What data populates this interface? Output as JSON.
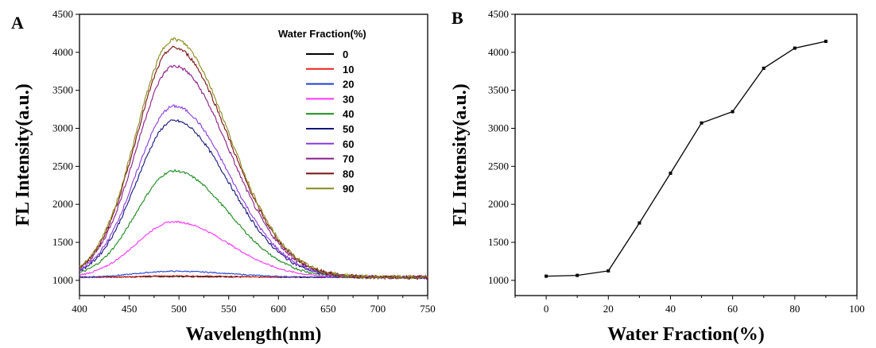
{
  "chart_data": [
    {
      "panel": "A",
      "type": "line",
      "xlabel": "Wavelength(nm)",
      "ylabel": "FL Intensity(a.u.)",
      "xlim": [
        400,
        750
      ],
      "ylim": [
        800,
        4500
      ],
      "xticks": [
        400,
        450,
        500,
        550,
        600,
        650,
        700,
        750
      ],
      "yticks": [
        1000,
        1500,
        2000,
        2500,
        3000,
        3500,
        4000,
        4500
      ],
      "legend_title": "Water Fraction(%)",
      "legend_position": "top-right",
      "grid": false,
      "peak_wavelength": 495,
      "baseline": 1040,
      "series": [
        {
          "name": "0",
          "color": "#000000",
          "peak": 1050
        },
        {
          "name": "10",
          "color": "#e8211a",
          "peak": 1060
        },
        {
          "name": "20",
          "color": "#1f3fd8",
          "peak": 1120
        },
        {
          "name": "30",
          "color": "#ff33ff",
          "peak": 1770
        },
        {
          "name": "40",
          "color": "#1a8a1a",
          "peak": 2440
        },
        {
          "name": "50",
          "color": "#14147a",
          "peak": 3100
        },
        {
          "name": "60",
          "color": "#8a3ae0",
          "peak": 3290
        },
        {
          "name": "70",
          "color": "#8a1a8a",
          "peak": 3820
        },
        {
          "name": "80",
          "color": "#7a0f12",
          "peak": 4060
        },
        {
          "name": "90",
          "color": "#8a8a1a",
          "peak": 4170
        }
      ]
    },
    {
      "panel": "B",
      "type": "line",
      "xlabel": "Water Fraction(%)",
      "ylabel": "FL Intensity(a.u.)",
      "xlim": [
        -10,
        100
      ],
      "ylim": [
        800,
        4500
      ],
      "xticks": [
        0,
        20,
        40,
        60,
        80,
        100
      ],
      "yticks": [
        1000,
        1500,
        2000,
        2500,
        3000,
        3500,
        4000,
        4500
      ],
      "grid": false,
      "color": "#000000",
      "x": [
        0,
        10,
        20,
        30,
        40,
        50,
        60,
        70,
        80,
        90
      ],
      "y": [
        1055,
        1065,
        1125,
        1755,
        2410,
        3070,
        3220,
        3790,
        4055,
        4145
      ]
    }
  ]
}
